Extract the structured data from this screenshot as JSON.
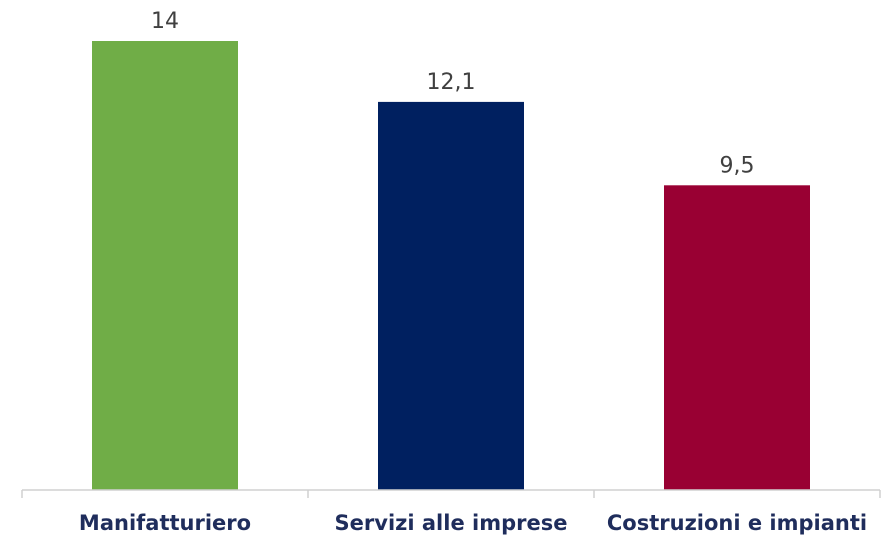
{
  "chart_data": {
    "type": "bar",
    "title": "",
    "xlabel": "",
    "ylabel": "",
    "categories": [
      "Manifatturiero",
      "Servizi alle imprese",
      "Costruzioni e impianti"
    ],
    "values": [
      14,
      12.1,
      9.5
    ],
    "value_labels": [
      "14",
      "12,1",
      "9,5"
    ],
    "bar_colors": [
      "#70ad47",
      "#002060",
      "#990033"
    ],
    "ylim": [
      0,
      14
    ],
    "grid": false,
    "legend": "none"
  }
}
